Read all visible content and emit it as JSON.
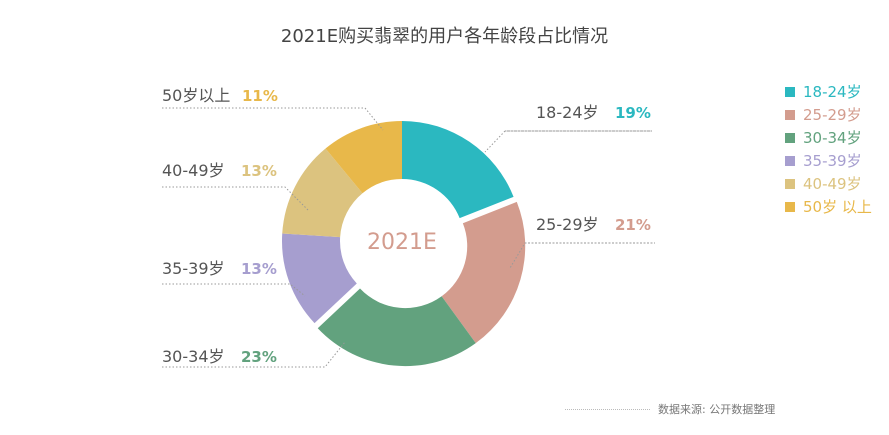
{
  "chart_data": {
    "type": "pie",
    "subtype": "donut",
    "title": "2021E购买翡翠的用户各年龄段占比情况",
    "center_label": "2021E",
    "categories": [
      "18-24岁",
      "25-29岁",
      "30-34岁",
      "35-39岁",
      "40-49岁",
      "50岁以上"
    ],
    "values": [
      19,
      21,
      23,
      13,
      13,
      11
    ],
    "value_labels": [
      "19%",
      "21%",
      "23%",
      "13%",
      "13%",
      "11%"
    ],
    "colors": [
      "#2bb8c0",
      "#d39c8e",
      "#62a27e",
      "#a69ecf",
      "#dcc37f",
      "#e8b84a"
    ],
    "legend_position": "right",
    "legend": [
      "18-24岁",
      "25-29岁",
      "30-34岁",
      "35-39岁",
      "40-49岁",
      "50岁 以上"
    ]
  },
  "source": "数据来源: 公开数据整理"
}
